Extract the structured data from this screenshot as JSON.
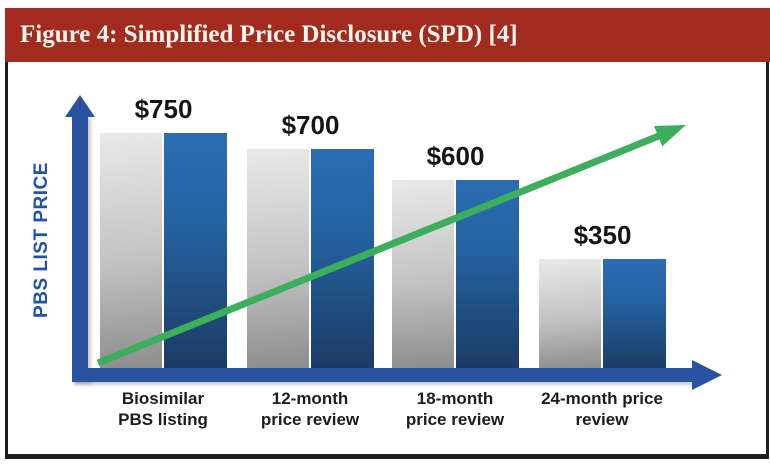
{
  "figure": {
    "title": "Figure 4: Simplified Price Disclosure (SPD) [4]"
  },
  "chart_data": {
    "type": "bar",
    "title": "Figure 4: Simplified Price Disclosure (SPD) [4]",
    "ylabel": "PBS LIST PRICE",
    "xlabel": "",
    "categories": [
      "Biosimilar PBS listing",
      "12-month price review",
      "18-month price review",
      "24-month price review"
    ],
    "category_lines": [
      [
        "Biosimilar",
        "PBS listing"
      ],
      [
        "12-month",
        "price review"
      ],
      [
        "18-month",
        "price review"
      ],
      [
        "24-month price",
        "review"
      ]
    ],
    "values": [
      750,
      700,
      600,
      350
    ],
    "value_labels": [
      "$750",
      "$700",
      "$600",
      "$350"
    ],
    "series": [
      {
        "name": "gray-bar",
        "values": [
          750,
          700,
          600,
          350
        ]
      },
      {
        "name": "blue-bar",
        "values": [
          750,
          700,
          600,
          350
        ]
      }
    ],
    "ylim": [
      0,
      790
    ],
    "grid": false,
    "legend": "none",
    "annotations": [
      {
        "type": "trend-arrow",
        "direction": "up-right",
        "color": "#3BAF5B",
        "meaning": "rising trend line crossing the declining bars"
      }
    ]
  },
  "colors": {
    "banner_red": "#A32A1E",
    "title_text": "#FBF6EE",
    "axis_blue": "#2B52A2",
    "ylabel_blue": "#2153A4",
    "bar_blue_top": "#2A6DB2",
    "bar_blue_bottom": "#1C3B64",
    "bar_gray_top": "#E9E9E9",
    "bar_gray_bottom": "#8C8C8C",
    "trend_green": "#3BAF5B",
    "label_text": "#151515",
    "border_black": "#1E1E1E"
  }
}
